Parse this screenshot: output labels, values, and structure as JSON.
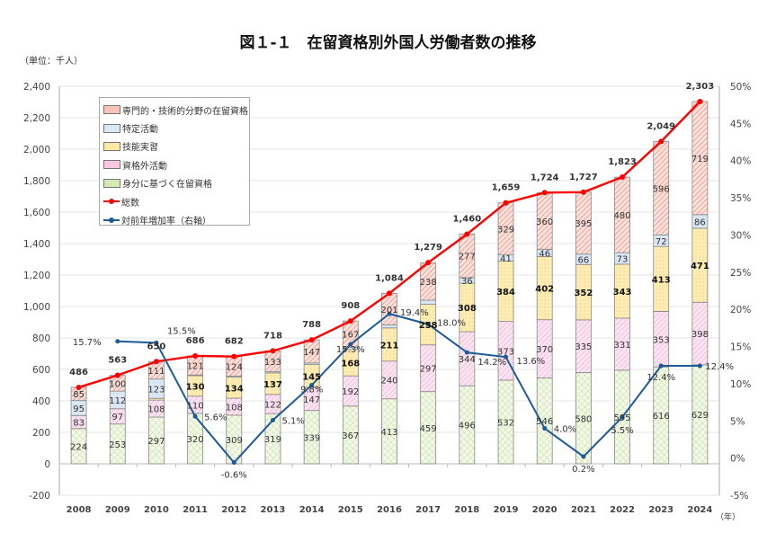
{
  "title": "図１-１　在留資格別外国人労働者数の推移",
  "unit_label": "（単位：千人）",
  "x_unit_label": "（年）",
  "chart_data": {
    "type": "bar",
    "stacked": true,
    "categories": [
      "2008",
      "2009",
      "2010",
      "2011",
      "2012",
      "2013",
      "2014",
      "2015",
      "2016",
      "2017",
      "2018",
      "2019",
      "2020",
      "2021",
      "2022",
      "2023",
      "2024"
    ],
    "series": [
      {
        "name": "身分に基づく在留資格",
        "color": "#d6e8b4",
        "values": [
          224,
          253,
          297,
          320,
          309,
          319,
          339,
          367,
          413,
          459,
          496,
          532,
          546,
          580,
          595,
          616,
          629
        ]
      },
      {
        "name": "資格外活動",
        "color": "#f6c8e2",
        "values": [
          83,
          97,
          108,
          110,
          108,
          122,
          147,
          192,
          240,
          297,
          344,
          373,
          370,
          335,
          331,
          353,
          398
        ]
      },
      {
        "name": "技能実習",
        "color": "#fde9a6",
        "values": [
          0,
          0,
          11,
          130,
          134,
          137,
          145,
          168,
          211,
          258,
          308,
          384,
          402,
          352,
          343,
          413,
          471
        ]
      },
      {
        "name": "特定活動",
        "color": "#dbe7f3",
        "values": [
          95,
          112,
          123,
          5,
          7,
          7,
          10,
          14,
          19,
          26,
          36,
          41,
          46,
          66,
          73,
          72,
          86
        ]
      },
      {
        "name": "専門的・技術的分野の在留資格",
        "color": "#f6c4b8",
        "values": [
          85,
          100,
          111,
          121,
          124,
          133,
          147,
          167,
          201,
          238,
          277,
          329,
          360,
          395,
          480,
          596,
          719
        ]
      }
    ],
    "lines": [
      {
        "name": "総数",
        "color": "#ff0000",
        "axis": "left",
        "values": [
          486,
          563,
          650,
          686,
          682,
          718,
          788,
          908,
          1084,
          1279,
          1460,
          1659,
          1724,
          1727,
          1823,
          2049,
          2303
        ],
        "labels": [
          "486",
          "563",
          "650",
          "686",
          "682",
          "718",
          "788",
          "908",
          "1,084",
          "1,279",
          "1,460",
          "1,659",
          "1,724",
          "1,727",
          "1,823",
          "2,049",
          "2,303"
        ]
      },
      {
        "name": "対前年増加率（右軸）",
        "color": "#1f5a96",
        "axis": "right",
        "values": [
          null,
          15.7,
          15.5,
          5.6,
          -0.6,
          5.1,
          9.8,
          15.3,
          19.4,
          18.0,
          14.2,
          13.6,
          4.0,
          0.2,
          5.5,
          12.4,
          12.4
        ],
        "labels": [
          null,
          "15.7%",
          "15.5%",
          "5.6%",
          "-0.6%",
          "5.1%",
          "9.8%",
          "15.3%",
          "19.4%",
          "18.0%",
          "14.2%",
          "13.6%",
          "4.0%",
          "0.2%",
          "5.5%",
          "12.4%",
          "12.4%"
        ]
      }
    ],
    "legend_order": [
      4,
      3,
      2,
      1,
      0
    ],
    "y_left": {
      "range": [
        -200,
        2400
      ],
      "ticks": [
        "-200",
        "0",
        "200",
        "400",
        "600",
        "800",
        "1,000",
        "1,200",
        "1,400",
        "1,600",
        "1,800",
        "2,000",
        "2,200",
        "2,400"
      ]
    },
    "y_right": {
      "range": [
        -5,
        50
      ],
      "ticks": [
        "-5%",
        "0%",
        "5%",
        "10%",
        "15%",
        "20%",
        "25%",
        "30%",
        "35%",
        "40%",
        "45%",
        "50%"
      ]
    },
    "grid": true,
    "legend_position": "top-left"
  }
}
